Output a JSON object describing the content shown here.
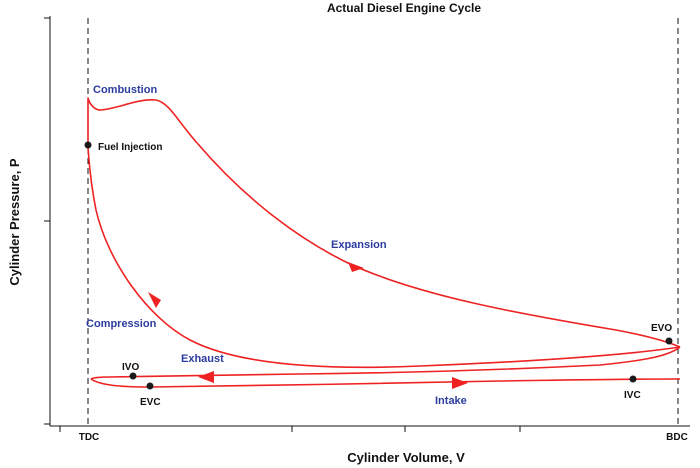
{
  "title": "Actual Diesel Engine Cycle",
  "axes": {
    "xlabel": "Cylinder Volume, V",
    "ylabel": "Cylinder Pressure, P",
    "x_ticks": [
      "TDC",
      "BDC"
    ]
  },
  "phases": {
    "combustion": "Combustion",
    "expansion": "Expansion",
    "compression": "Compression",
    "exhaust": "Exhaust",
    "intake": "Intake"
  },
  "points": {
    "fuel_injection": "Fuel Injection",
    "evo": "EVO",
    "ivo": "IVO",
    "evc": "EVC",
    "ivc": "IVC"
  },
  "colors": {
    "cycle": "#ee2222",
    "phase_text": "#2b3c9e",
    "markers": "#1a1a1a"
  }
}
